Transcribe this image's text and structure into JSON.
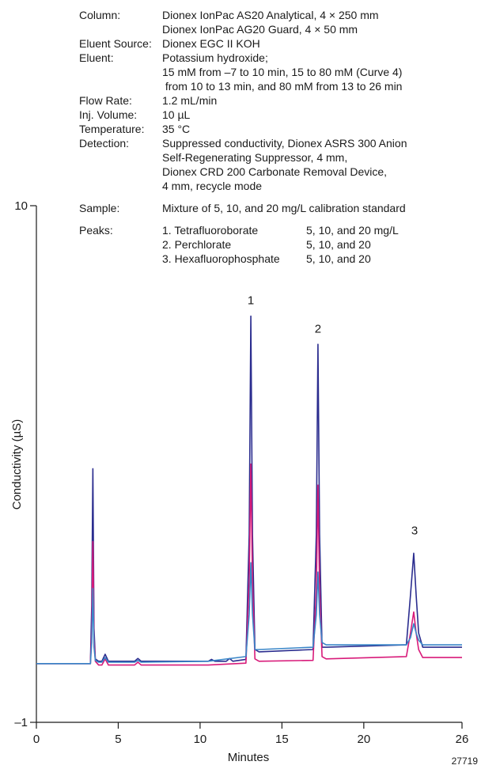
{
  "conditions": {
    "column_label": "Column:",
    "column_line1": "Dionex IonPac AS20  Analytical, 4 × 250 mm",
    "column_line2": "Dionex IonPac AG20 Guard, 4 × 50 mm",
    "eluent_source_label": "Eluent Source:",
    "eluent_source": "Dionex EGC II KOH",
    "eluent_label": "Eluent:",
    "eluent_line1": "Potassium hydroxide;",
    "eluent_line2": "15 mM from –7 to 10 min, 15 to 80 mM (Curve 4)",
    "eluent_line3": " from 10 to 13 min, and 80 mM from 13 to 26 min",
    "flow_rate_label": "Flow Rate:",
    "flow_rate": "1.2 mL/min",
    "inj_volume_label": "Inj. Volume:",
    "inj_volume": "10 µL",
    "temperature_label": "Temperature:",
    "temperature": "35 °C",
    "detection_label": "Detection:",
    "detection_line1": "Suppressed conductivity, Dionex ASRS 300 Anion",
    "detection_line2": "Self-Regenerating Suppressor, 4 mm,",
    "detection_line3": "Dionex CRD 200 Carbonate Removal Device,",
    "detection_line4": "4 mm, recycle mode",
    "sample_label": "Sample:",
    "sample": "Mixture of 5, 10, and 20 mg/L calibration standard",
    "peaks_label": "Peaks:",
    "peaks": [
      {
        "name": "1. Tetrafluoroborate",
        "conc": "5, 10, and 20 mg/L"
      },
      {
        "name": "2. Perchlorate",
        "conc": "5, 10, and 20"
      },
      {
        "name": "3. Hexafluorophosphate",
        "conc": "5, 10, and 20"
      }
    ]
  },
  "figure_id": "27719",
  "colors": {
    "high": "#2b2d8f",
    "mid": "#d81b7a",
    "low": "#3a86c8",
    "axis": "#1a1a1a"
  },
  "chart_data": {
    "type": "line",
    "xlabel": "Minutes",
    "ylabel": "Conductivity (µS)",
    "xlim": [
      0,
      26
    ],
    "ylim": [
      -1,
      10
    ],
    "xticks": [
      0,
      5,
      10,
      15,
      20,
      26
    ],
    "yticks": [
      -1,
      10
    ],
    "ytick_labels": [
      "–1",
      "10"
    ],
    "peak_labels": [
      {
        "label": "1",
        "x": 13.1,
        "y": 7.9
      },
      {
        "label": "2",
        "x": 17.2,
        "y": 7.3
      },
      {
        "label": "3",
        "x": 23.1,
        "y": 3.0
      }
    ],
    "series": [
      {
        "color_key": "high",
        "x": [
          0,
          3.3,
          3.38,
          3.45,
          3.52,
          3.6,
          3.8,
          4.0,
          4.2,
          4.4,
          6.0,
          6.2,
          6.4,
          10.5,
          10.7,
          10.9,
          11.6,
          11.8,
          12.0,
          12.8,
          13.0,
          13.1,
          13.2,
          13.35,
          13.6,
          16.9,
          17.1,
          17.2,
          17.3,
          17.45,
          17.7,
          22.6,
          22.85,
          23.05,
          23.2,
          23.35,
          23.6,
          26
        ],
        "y": [
          0.25,
          0.25,
          1.5,
          4.4,
          1.0,
          0.35,
          0.3,
          0.3,
          0.45,
          0.3,
          0.3,
          0.36,
          0.3,
          0.3,
          0.34,
          0.3,
          0.3,
          0.36,
          0.3,
          0.34,
          3.0,
          7.65,
          3.0,
          0.55,
          0.5,
          0.55,
          3.0,
          7.05,
          3.0,
          0.6,
          0.6,
          0.65,
          1.7,
          2.6,
          1.7,
          0.9,
          0.6,
          0.6
        ]
      },
      {
        "color_key": "mid",
        "x": [
          0,
          3.3,
          3.38,
          3.45,
          3.52,
          3.6,
          3.8,
          4.0,
          4.2,
          4.4,
          6.0,
          6.2,
          6.4,
          10.5,
          12.8,
          13.0,
          13.1,
          13.2,
          13.35,
          13.6,
          16.9,
          17.1,
          17.2,
          17.3,
          17.45,
          17.7,
          22.6,
          22.85,
          23.05,
          23.2,
          23.35,
          23.6,
          26
        ],
        "y": [
          0.25,
          0.25,
          1.0,
          2.85,
          0.8,
          0.3,
          0.22,
          0.22,
          0.35,
          0.22,
          0.22,
          0.28,
          0.22,
          0.22,
          0.26,
          2.0,
          4.5,
          2.0,
          0.35,
          0.3,
          0.32,
          1.8,
          4.05,
          1.8,
          0.4,
          0.35,
          0.4,
          0.9,
          1.35,
          0.9,
          0.55,
          0.38,
          0.38
        ]
      },
      {
        "color_key": "low",
        "x": [
          0,
          3.3,
          3.38,
          3.45,
          3.52,
          3.6,
          3.8,
          4.0,
          4.2,
          4.4,
          6.0,
          6.2,
          6.4,
          10.5,
          12.8,
          13.0,
          13.1,
          13.2,
          13.35,
          13.6,
          16.9,
          17.1,
          17.2,
          17.3,
          17.45,
          17.7,
          22.6,
          22.85,
          23.05,
          23.2,
          23.35,
          23.6,
          26
        ],
        "y": [
          0.25,
          0.25,
          0.7,
          1.85,
          0.6,
          0.32,
          0.28,
          0.28,
          0.38,
          0.28,
          0.28,
          0.32,
          0.28,
          0.3,
          0.4,
          1.3,
          2.4,
          1.3,
          0.55,
          0.55,
          0.6,
          1.3,
          2.2,
          1.3,
          0.7,
          0.65,
          0.65,
          0.8,
          1.1,
          0.9,
          0.75,
          0.65,
          0.65
        ]
      }
    ]
  }
}
